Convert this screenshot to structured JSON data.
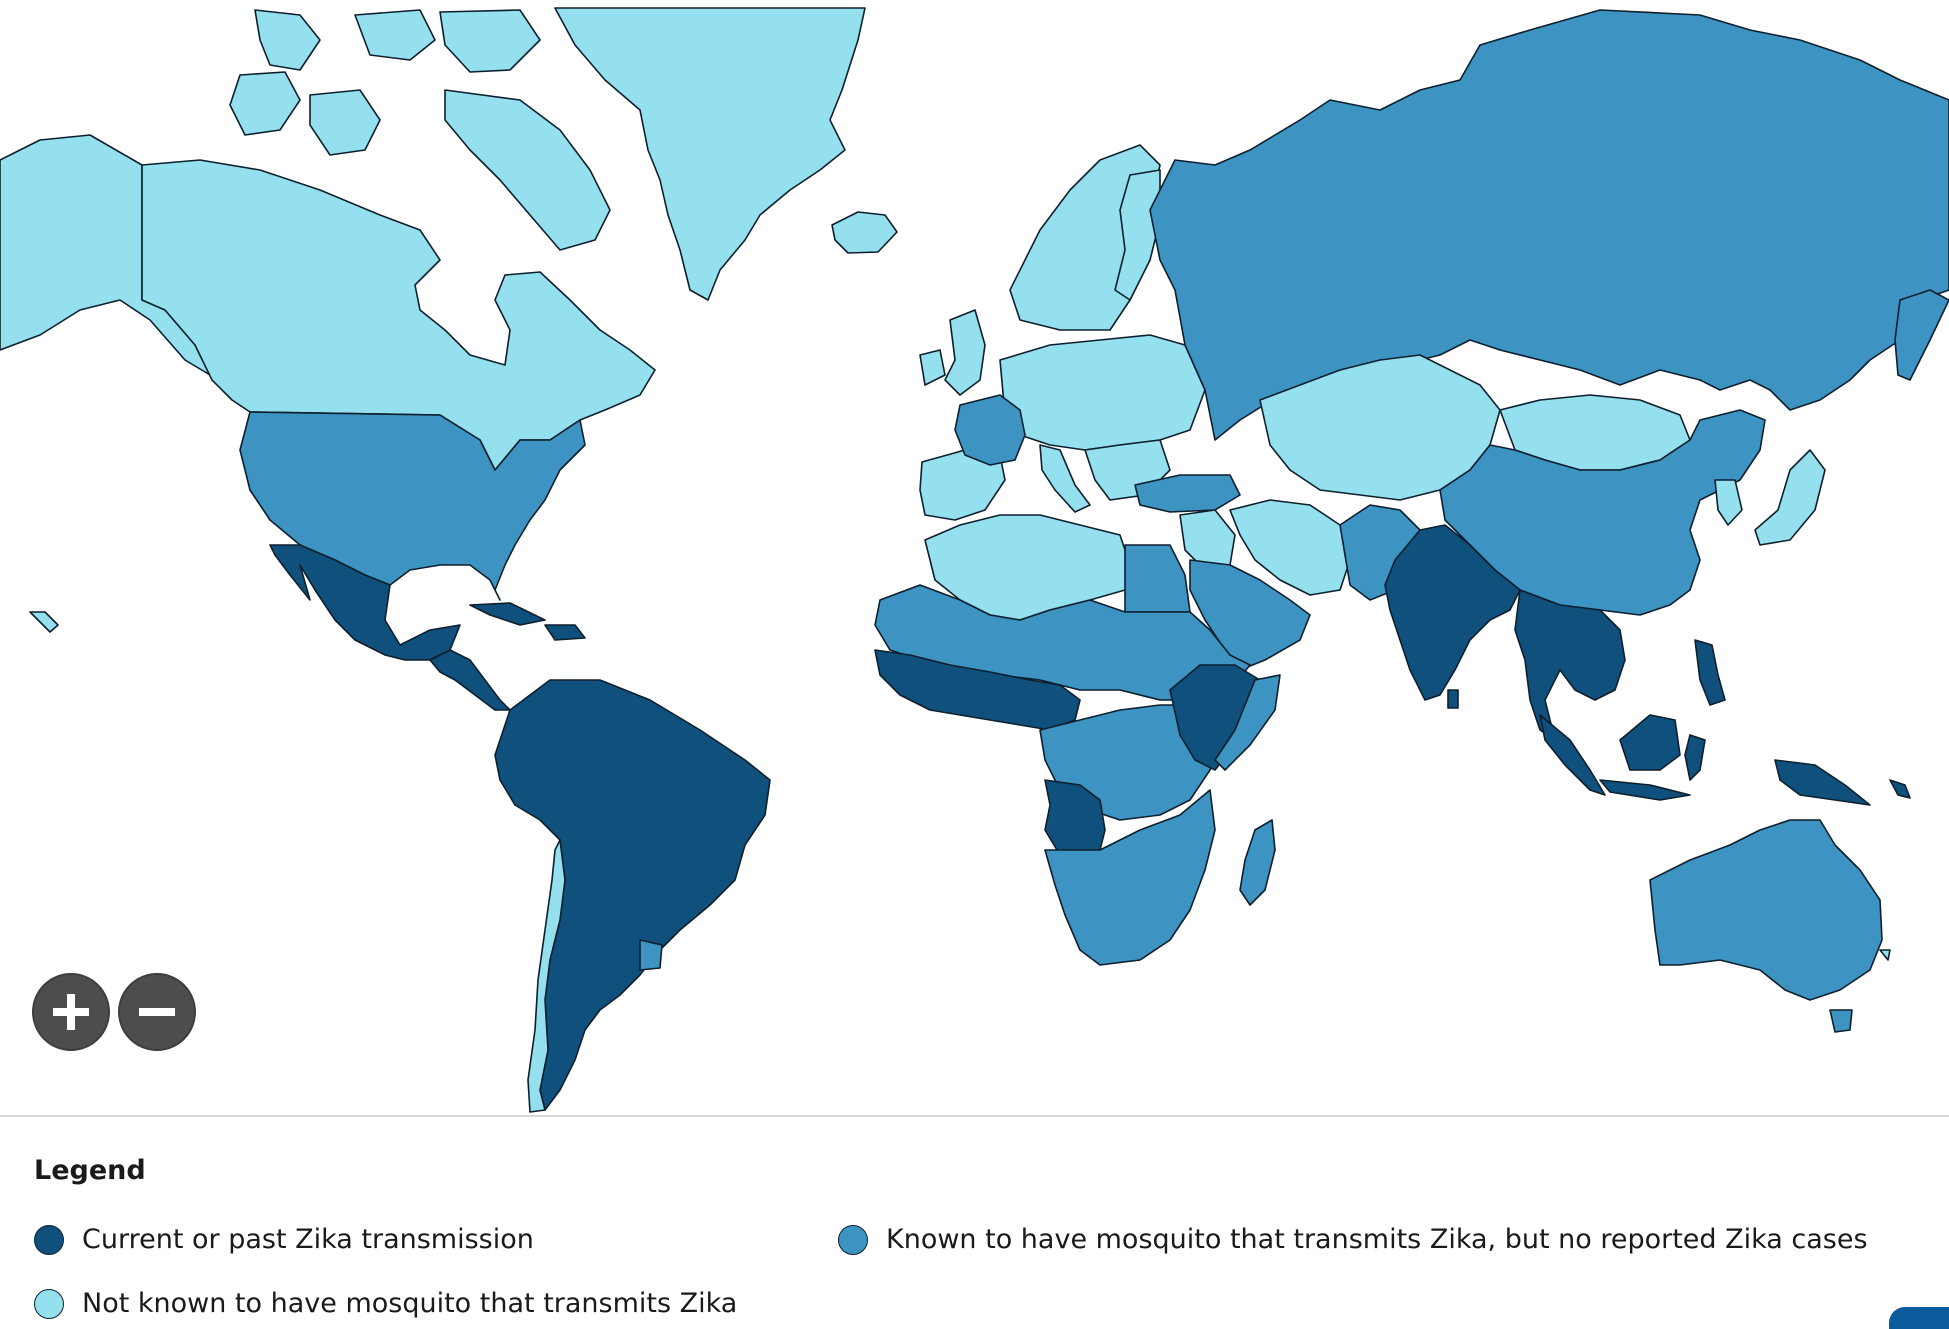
{
  "colors": {
    "current_or_past": "#10507d",
    "mosquito_no_cases": "#3d93c2",
    "no_mosquito": "#94e0ee",
    "border": "#0d1f2d"
  },
  "zoom": {
    "zoom_in_icon": "plus-icon",
    "zoom_out_icon": "minus-icon"
  },
  "legend": {
    "title": "Legend",
    "items": [
      {
        "label": "Current or past Zika transmission",
        "color": "#10507d"
      },
      {
        "label": "Known to have mosquito that transmits Zika, but no reported Zika cases",
        "color": "#3d93c2"
      },
      {
        "label": "Not known to have mosquito that transmits Zika",
        "color": "#94e0ee"
      }
    ]
  }
}
